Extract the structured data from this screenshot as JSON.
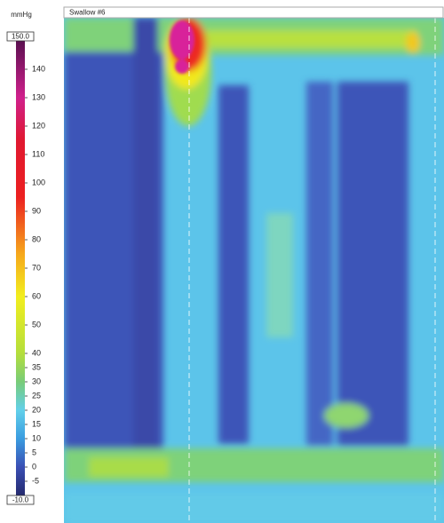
{
  "window": {
    "title": "Swallow #6"
  },
  "colorbar": {
    "unit": "mmHg",
    "max": {
      "value": 150,
      "label": "150.0"
    },
    "min": {
      "value": -10,
      "label": "-10.0"
    },
    "ticks": [
      140,
      130,
      120,
      110,
      100,
      90,
      80,
      70,
      60,
      50,
      40,
      35,
      30,
      25,
      20,
      15,
      10,
      5,
      0,
      -5
    ],
    "stops": [
      {
        "value": -10,
        "color": "#252a6e"
      },
      {
        "value": 0,
        "color": "#3a4fb4"
      },
      {
        "value": 10,
        "color": "#3a9ce0"
      },
      {
        "value": 20,
        "color": "#62d0ea"
      },
      {
        "value": 30,
        "color": "#78cc78"
      },
      {
        "value": 40,
        "color": "#b4de3c"
      },
      {
        "value": 60,
        "color": "#f2ee1e"
      },
      {
        "value": 75,
        "color": "#f6a81c"
      },
      {
        "value": 95,
        "color": "#ec2020"
      },
      {
        "value": 115,
        "color": "#e01830"
      },
      {
        "value": 130,
        "color": "#d0208c"
      },
      {
        "value": 150,
        "color": "#5a1050"
      }
    ]
  }
}
